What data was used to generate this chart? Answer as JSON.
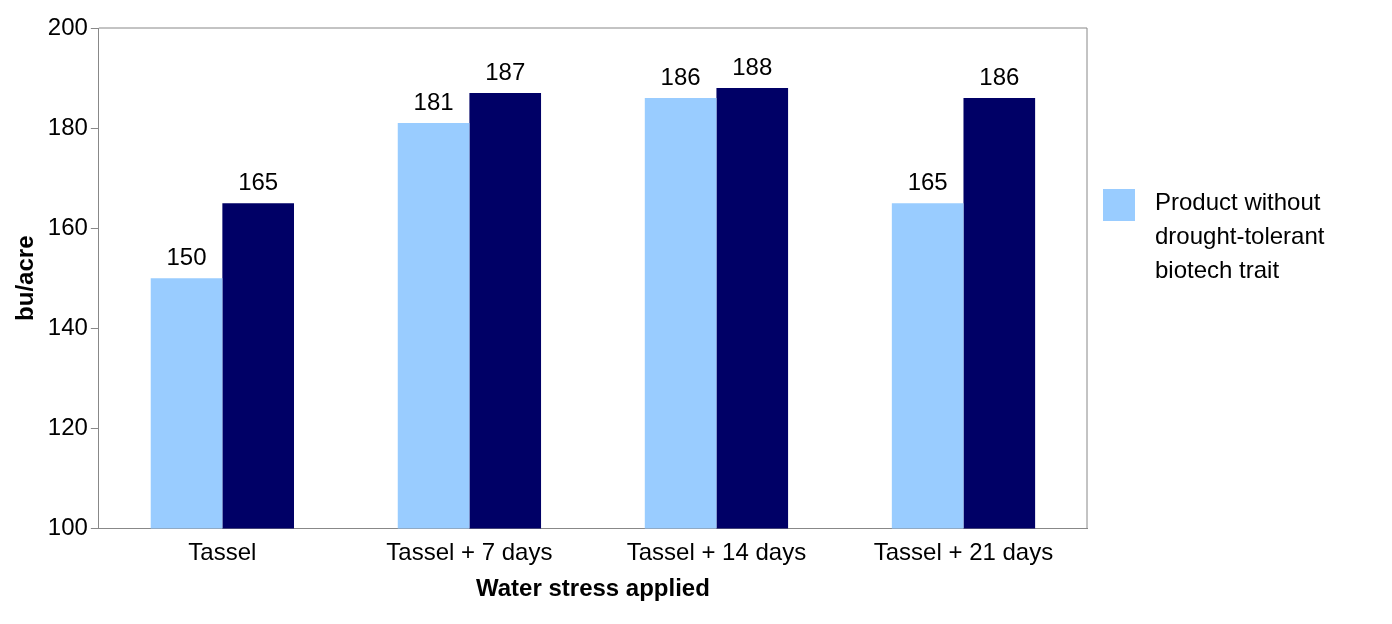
{
  "chart_data": {
    "type": "bar",
    "xlabel": "Water stress applied",
    "ylabel": "bu/acre",
    "categories": [
      "Tassel",
      "Tassel + 7 days",
      "Tassel + 14 days",
      "Tassel + 21 days"
    ],
    "series": [
      {
        "name": "Product without drought-tolerant biotech trait",
        "color": "#99ccff",
        "values": [
          150,
          181,
          186,
          165
        ]
      },
      {
        "color": "#000066",
        "values": [
          165,
          187,
          188,
          186
        ]
      }
    ],
    "ylim": [
      100,
      200
    ],
    "yticks": [
      100,
      120,
      140,
      160,
      180,
      200
    ],
    "grid": false,
    "legend": "right",
    "data_labels": true
  }
}
